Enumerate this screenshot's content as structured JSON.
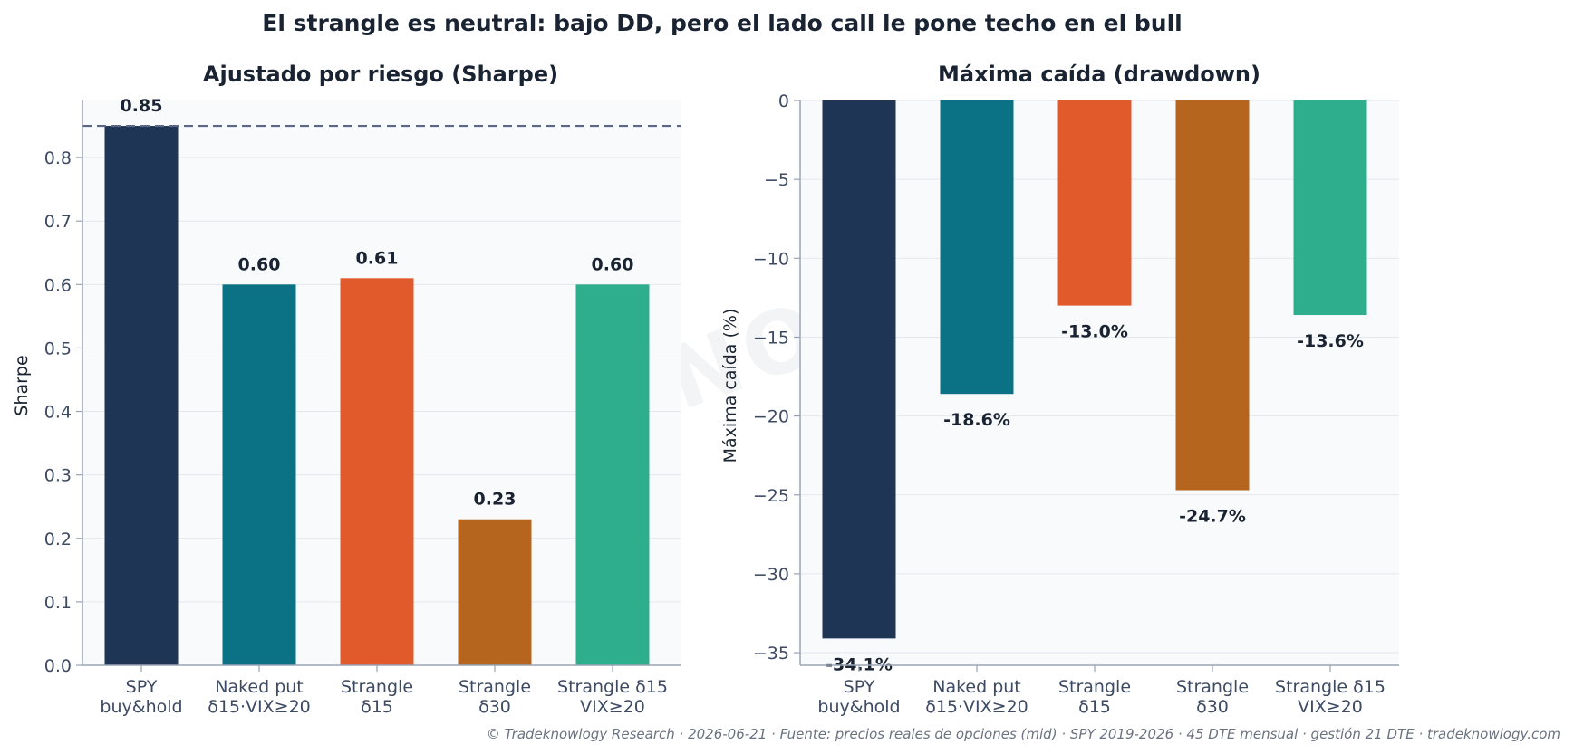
{
  "suptitle": "El strangle es neutral: bajo DD, pero el lado call le pone techo en el bull",
  "watermark": "TRADEKNOWLOGY",
  "footer": {
    "copyright": "© Tradeknowlogy Research",
    "date": "2026-06-21",
    "source": "Fuente: precios reales de opciones (mid) · SPY 2019-2026 · 45 DTE mensual · gestión 21 DTE",
    "site": "tradeknowlogy.com"
  },
  "chart_data": [
    {
      "type": "bar",
      "title": "Ajustado por riesgo (Sharpe)",
      "xlabel": "",
      "ylabel": "Sharpe",
      "categories": [
        [
          "SPY",
          "buy&hold"
        ],
        [
          "Naked put",
          "δ15·VIX≥20"
        ],
        [
          "Strangle",
          "δ15"
        ],
        [
          "Strangle",
          "δ30"
        ],
        [
          "Strangle δ15",
          "VIX≥20"
        ]
      ],
      "values": [
        0.85,
        0.6,
        0.61,
        0.23,
        0.6
      ],
      "value_labels": [
        "0.85",
        "0.60",
        "0.61",
        "0.23",
        "0.60"
      ],
      "colors": [
        "#1f3556",
        "#0b7285",
        "#e05a2b",
        "#b5651d",
        "#2eae8c"
      ],
      "ylim": [
        0,
        0.89
      ],
      "yticks": [
        0.0,
        0.1,
        0.2,
        0.3,
        0.4,
        0.5,
        0.6,
        0.7,
        0.8
      ],
      "ytick_labels": [
        "0.0",
        "0.1",
        "0.2",
        "0.3",
        "0.4",
        "0.5",
        "0.6",
        "0.7",
        "0.8"
      ],
      "reference_line": 0.85,
      "grid": true
    },
    {
      "type": "bar",
      "title": "Máxima caída (drawdown)",
      "xlabel": "",
      "ylabel": "Máxima caída (%)",
      "categories": [
        [
          "SPY",
          "buy&hold"
        ],
        [
          "Naked put",
          "δ15·VIX≥20"
        ],
        [
          "Strangle",
          "δ15"
        ],
        [
          "Strangle",
          "δ30"
        ],
        [
          "Strangle δ15",
          "VIX≥20"
        ]
      ],
      "values": [
        -34.1,
        -18.6,
        -13.0,
        -24.7,
        -13.6
      ],
      "value_labels": [
        "-34.1%",
        "-18.6%",
        "-13.0%",
        "-24.7%",
        "-13.6%"
      ],
      "colors": [
        "#1f3556",
        "#0b7285",
        "#e05a2b",
        "#b5651d",
        "#2eae8c"
      ],
      "ylim": [
        -35.8,
        0
      ],
      "yticks": [
        0,
        -5,
        -10,
        -15,
        -20,
        -25,
        -30,
        -35
      ],
      "ytick_labels": [
        "0",
        "−5",
        "−10",
        "−15",
        "−20",
        "−25",
        "−30",
        "−35"
      ],
      "grid": true
    }
  ]
}
